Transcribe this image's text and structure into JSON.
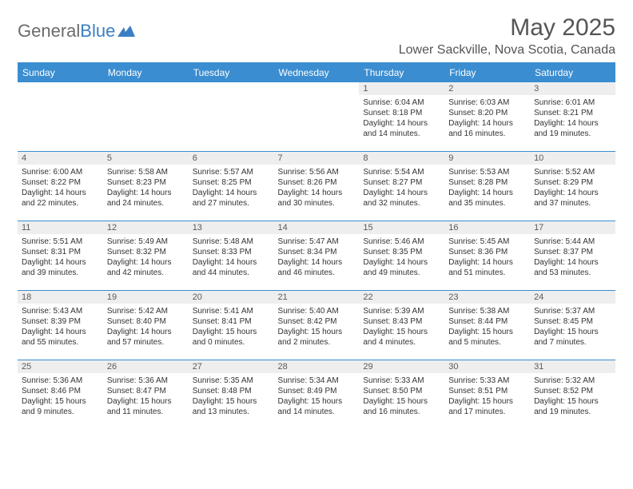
{
  "logo": {
    "textGray": "General",
    "textBlue": "Blue"
  },
  "title": "May 2025",
  "location": "Lower Sackville, Nova Scotia, Canada",
  "colors": {
    "headerBg": "#3a8dd0",
    "dayNumBg": "#eeeeee",
    "logoGray": "#6b6b6b",
    "logoBlue": "#3a7fc4",
    "titleColor": "#555555"
  },
  "weekdays": [
    "Sunday",
    "Monday",
    "Tuesday",
    "Wednesday",
    "Thursday",
    "Friday",
    "Saturday"
  ],
  "weeks": [
    [
      null,
      null,
      null,
      null,
      {
        "n": "1",
        "sr": "Sunrise: 6:04 AM",
        "ss": "Sunset: 8:18 PM",
        "dl": "Daylight: 14 hours and 14 minutes."
      },
      {
        "n": "2",
        "sr": "Sunrise: 6:03 AM",
        "ss": "Sunset: 8:20 PM",
        "dl": "Daylight: 14 hours and 16 minutes."
      },
      {
        "n": "3",
        "sr": "Sunrise: 6:01 AM",
        "ss": "Sunset: 8:21 PM",
        "dl": "Daylight: 14 hours and 19 minutes."
      }
    ],
    [
      {
        "n": "4",
        "sr": "Sunrise: 6:00 AM",
        "ss": "Sunset: 8:22 PM",
        "dl": "Daylight: 14 hours and 22 minutes."
      },
      {
        "n": "5",
        "sr": "Sunrise: 5:58 AM",
        "ss": "Sunset: 8:23 PM",
        "dl": "Daylight: 14 hours and 24 minutes."
      },
      {
        "n": "6",
        "sr": "Sunrise: 5:57 AM",
        "ss": "Sunset: 8:25 PM",
        "dl": "Daylight: 14 hours and 27 minutes."
      },
      {
        "n": "7",
        "sr": "Sunrise: 5:56 AM",
        "ss": "Sunset: 8:26 PM",
        "dl": "Daylight: 14 hours and 30 minutes."
      },
      {
        "n": "8",
        "sr": "Sunrise: 5:54 AM",
        "ss": "Sunset: 8:27 PM",
        "dl": "Daylight: 14 hours and 32 minutes."
      },
      {
        "n": "9",
        "sr": "Sunrise: 5:53 AM",
        "ss": "Sunset: 8:28 PM",
        "dl": "Daylight: 14 hours and 35 minutes."
      },
      {
        "n": "10",
        "sr": "Sunrise: 5:52 AM",
        "ss": "Sunset: 8:29 PM",
        "dl": "Daylight: 14 hours and 37 minutes."
      }
    ],
    [
      {
        "n": "11",
        "sr": "Sunrise: 5:51 AM",
        "ss": "Sunset: 8:31 PM",
        "dl": "Daylight: 14 hours and 39 minutes."
      },
      {
        "n": "12",
        "sr": "Sunrise: 5:49 AM",
        "ss": "Sunset: 8:32 PM",
        "dl": "Daylight: 14 hours and 42 minutes."
      },
      {
        "n": "13",
        "sr": "Sunrise: 5:48 AM",
        "ss": "Sunset: 8:33 PM",
        "dl": "Daylight: 14 hours and 44 minutes."
      },
      {
        "n": "14",
        "sr": "Sunrise: 5:47 AM",
        "ss": "Sunset: 8:34 PM",
        "dl": "Daylight: 14 hours and 46 minutes."
      },
      {
        "n": "15",
        "sr": "Sunrise: 5:46 AM",
        "ss": "Sunset: 8:35 PM",
        "dl": "Daylight: 14 hours and 49 minutes."
      },
      {
        "n": "16",
        "sr": "Sunrise: 5:45 AM",
        "ss": "Sunset: 8:36 PM",
        "dl": "Daylight: 14 hours and 51 minutes."
      },
      {
        "n": "17",
        "sr": "Sunrise: 5:44 AM",
        "ss": "Sunset: 8:37 PM",
        "dl": "Daylight: 14 hours and 53 minutes."
      }
    ],
    [
      {
        "n": "18",
        "sr": "Sunrise: 5:43 AM",
        "ss": "Sunset: 8:39 PM",
        "dl": "Daylight: 14 hours and 55 minutes."
      },
      {
        "n": "19",
        "sr": "Sunrise: 5:42 AM",
        "ss": "Sunset: 8:40 PM",
        "dl": "Daylight: 14 hours and 57 minutes."
      },
      {
        "n": "20",
        "sr": "Sunrise: 5:41 AM",
        "ss": "Sunset: 8:41 PM",
        "dl": "Daylight: 15 hours and 0 minutes."
      },
      {
        "n": "21",
        "sr": "Sunrise: 5:40 AM",
        "ss": "Sunset: 8:42 PM",
        "dl": "Daylight: 15 hours and 2 minutes."
      },
      {
        "n": "22",
        "sr": "Sunrise: 5:39 AM",
        "ss": "Sunset: 8:43 PM",
        "dl": "Daylight: 15 hours and 4 minutes."
      },
      {
        "n": "23",
        "sr": "Sunrise: 5:38 AM",
        "ss": "Sunset: 8:44 PM",
        "dl": "Daylight: 15 hours and 5 minutes."
      },
      {
        "n": "24",
        "sr": "Sunrise: 5:37 AM",
        "ss": "Sunset: 8:45 PM",
        "dl": "Daylight: 15 hours and 7 minutes."
      }
    ],
    [
      {
        "n": "25",
        "sr": "Sunrise: 5:36 AM",
        "ss": "Sunset: 8:46 PM",
        "dl": "Daylight: 15 hours and 9 minutes."
      },
      {
        "n": "26",
        "sr": "Sunrise: 5:36 AM",
        "ss": "Sunset: 8:47 PM",
        "dl": "Daylight: 15 hours and 11 minutes."
      },
      {
        "n": "27",
        "sr": "Sunrise: 5:35 AM",
        "ss": "Sunset: 8:48 PM",
        "dl": "Daylight: 15 hours and 13 minutes."
      },
      {
        "n": "28",
        "sr": "Sunrise: 5:34 AM",
        "ss": "Sunset: 8:49 PM",
        "dl": "Daylight: 15 hours and 14 minutes."
      },
      {
        "n": "29",
        "sr": "Sunrise: 5:33 AM",
        "ss": "Sunset: 8:50 PM",
        "dl": "Daylight: 15 hours and 16 minutes."
      },
      {
        "n": "30",
        "sr": "Sunrise: 5:33 AM",
        "ss": "Sunset: 8:51 PM",
        "dl": "Daylight: 15 hours and 17 minutes."
      },
      {
        "n": "31",
        "sr": "Sunrise: 5:32 AM",
        "ss": "Sunset: 8:52 PM",
        "dl": "Daylight: 15 hours and 19 minutes."
      }
    ]
  ]
}
